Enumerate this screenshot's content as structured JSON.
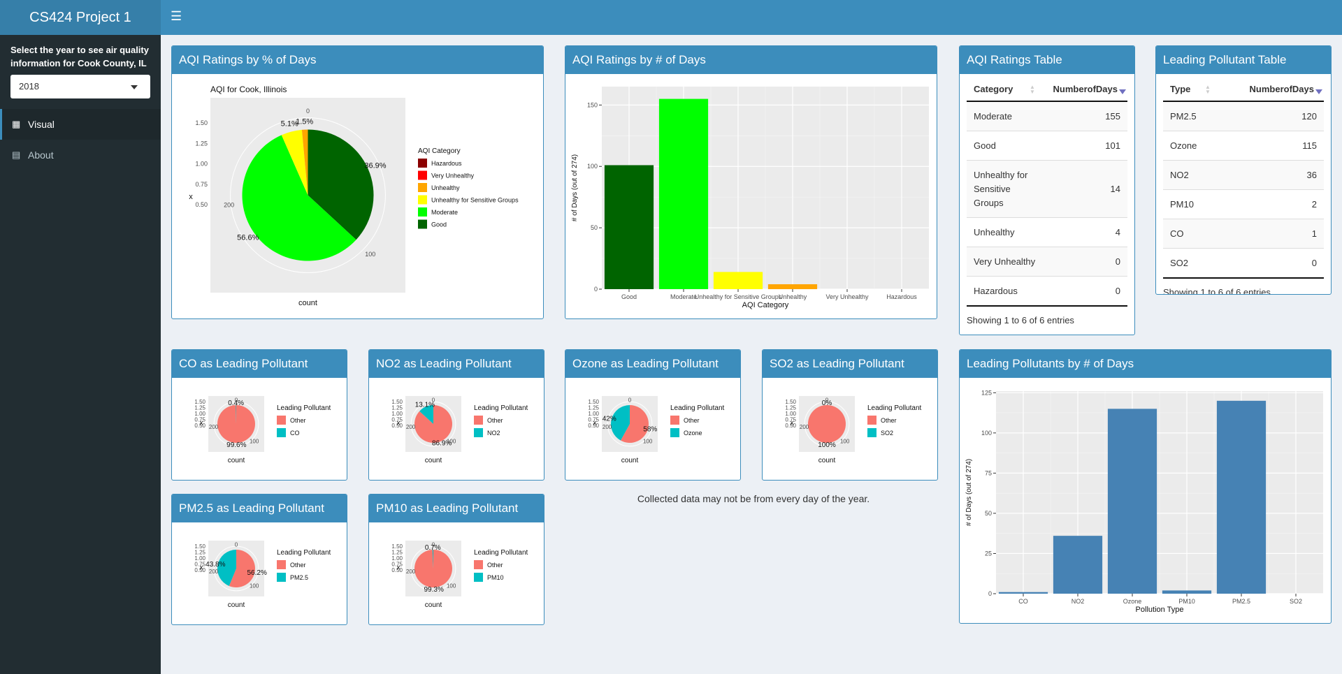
{
  "app": {
    "title": "CS424 Project 1"
  },
  "sidebar": {
    "prompt": "Select the year to see air quality information for Cook County, IL",
    "year_select": {
      "value": "2018"
    },
    "items": [
      {
        "label": "Visual",
        "icon": "grid-icon"
      },
      {
        "label": "About",
        "icon": "clipboard-icon"
      }
    ]
  },
  "boxes": {
    "aqi_pct": "AQI Ratings by % of Days",
    "aqi_days": "AQI Ratings by # of Days",
    "aqi_table": "AQI Ratings Table",
    "pollutant_table": "Leading Pollutant Table",
    "co": "CO as Leading Pollutant",
    "no2": "NO2 as Leading Pollutant",
    "ozone": "Ozone as Leading Pollutant",
    "so2": "SO2 as Leading Pollutant",
    "pm25": "PM2.5 as Leading Pollutant",
    "pm10": "PM10 as Leading Pollutant",
    "pollutants_days": "Leading Pollutants by # of Days"
  },
  "aqi_table": {
    "headers": [
      "Category",
      "NumberofDays"
    ],
    "rows": [
      {
        "category": "Moderate",
        "days": "155"
      },
      {
        "category": "Good",
        "days": "101"
      },
      {
        "category": "Unhealthy for Sensitive Groups",
        "days": "14"
      },
      {
        "category": "Unhealthy",
        "days": "4"
      },
      {
        "category": "Very Unhealthy",
        "days": "0"
      },
      {
        "category": "Hazardous",
        "days": "0"
      }
    ],
    "info": "Showing 1 to 6 of 6 entries"
  },
  "pollutant_table": {
    "headers": [
      "Type",
      "NumberofDays"
    ],
    "rows": [
      {
        "type": "PM2.5",
        "days": "120"
      },
      {
        "type": "Ozone",
        "days": "115"
      },
      {
        "type": "NO2",
        "days": "36"
      },
      {
        "type": "PM10",
        "days": "2"
      },
      {
        "type": "CO",
        "days": "1"
      },
      {
        "type": "SO2",
        "days": "0"
      }
    ],
    "info": "Showing 1 to 6 of 6 entries"
  },
  "note": "Collected data may not be  from every day of the year.",
  "chart_data": [
    {
      "id": "aqi_pct",
      "type": "pie",
      "title": "AQI for Cook, Illinois",
      "xlabel": "count",
      "ylabel": "x",
      "legend_title": "AQI Category",
      "legend_position": "right",
      "legend": [
        "Hazardous",
        "Very Unhealthy",
        "Unhealthy",
        "Unhealthy for Sensitive Groups",
        "Moderate",
        "Good"
      ],
      "legend_colors": [
        "#8b0000",
        "#ff0000",
        "#ffa500",
        "#ffff00",
        "#00ff00",
        "#006400"
      ],
      "slices": [
        {
          "label": "Good",
          "value": 101,
          "color": "#006400",
          "pct_label": "36.9%"
        },
        {
          "label": "Moderate",
          "value": 155,
          "color": "#00ff00",
          "pct_label": "56.6%"
        },
        {
          "label": "Unhealthy for Sensitive Groups",
          "value": 14,
          "color": "#ffff00",
          "pct_label": "5.1%"
        },
        {
          "label": "Unhealthy",
          "value": 4,
          "color": "#ffa500",
          "pct_label": "1.5%"
        }
      ],
      "radial_ticks": [
        "0",
        "100",
        "200"
      ],
      "y_ticks": [
        "0.50",
        "0.75",
        "1.00",
        "1.25",
        "1.50"
      ]
    },
    {
      "id": "aqi_days",
      "type": "bar",
      "xlabel": "AQI Category",
      "ylabel": "# of Days (out of 274)",
      "categories": [
        "Good",
        "Moderate",
        "Unhealthy for Sensitive Groups",
        "Unhealthy",
        "Very Unhealthy",
        "Hazardous"
      ],
      "values": [
        101,
        155,
        14,
        4,
        0,
        0
      ],
      "colors": [
        "#006400",
        "#00ff00",
        "#ffff00",
        "#ffa500",
        "#ff0000",
        "#8b0000"
      ],
      "ylim": [
        0,
        165
      ],
      "yticks": [
        0,
        50,
        100,
        150
      ],
      "grid": true
    },
    {
      "id": "pollutants_days",
      "type": "bar",
      "xlabel": "Pollution Type",
      "ylabel": "# of Days (out of 274)",
      "categories": [
        "CO",
        "NO2",
        "Ozone",
        "PM10",
        "PM2.5",
        "SO2"
      ],
      "values": [
        1,
        36,
        115,
        2,
        120,
        0
      ],
      "color": "#4682b4",
      "ylim": [
        0,
        126
      ],
      "yticks": [
        0,
        25,
        50,
        75,
        100,
        125
      ],
      "grid": true
    },
    {
      "id": "co",
      "type": "pie",
      "xlabel": "count",
      "ylabel": "x",
      "legend_title": "Leading Pollutant",
      "legend": [
        "Other",
        "CO"
      ],
      "slices": [
        {
          "label": "Other",
          "value": 273,
          "color": "#f8766d",
          "pct_label": "99.6%"
        },
        {
          "label": "CO",
          "value": 1,
          "color": "#00bfc4",
          "pct_label": "0.4%"
        }
      ],
      "radial_ticks": [
        "0",
        "100",
        "200"
      ],
      "y_ticks": [
        "0.50",
        "0.75",
        "1.00",
        "1.25",
        "1.50"
      ]
    },
    {
      "id": "no2",
      "type": "pie",
      "xlabel": "count",
      "ylabel": "x",
      "legend_title": "Leading Pollutant",
      "legend": [
        "Other",
        "NO2"
      ],
      "slices": [
        {
          "label": "Other",
          "value": 238,
          "color": "#f8766d",
          "pct_label": "86.9%"
        },
        {
          "label": "NO2",
          "value": 36,
          "color": "#00bfc4",
          "pct_label": "13.1%"
        }
      ],
      "radial_ticks": [
        "0",
        "100",
        "200"
      ],
      "y_ticks": [
        "0.50",
        "0.75",
        "1.00",
        "1.25",
        "1.50"
      ]
    },
    {
      "id": "ozone",
      "type": "pie",
      "xlabel": "count",
      "ylabel": "x",
      "legend_title": "Leading Pollutant",
      "legend": [
        "Other",
        "Ozone"
      ],
      "slices": [
        {
          "label": "Other",
          "value": 159,
          "color": "#f8766d",
          "pct_label": "58%"
        },
        {
          "label": "Ozone",
          "value": 115,
          "color": "#00bfc4",
          "pct_label": "42%"
        }
      ],
      "radial_ticks": [
        "0",
        "100",
        "200"
      ],
      "y_ticks": [
        "0.50",
        "0.75",
        "1.00",
        "1.25",
        "1.50"
      ]
    },
    {
      "id": "so2",
      "type": "pie",
      "xlabel": "count",
      "ylabel": "x",
      "legend_title": "Leading Pollutant",
      "legend": [
        "Other",
        "SO2"
      ],
      "slices": [
        {
          "label": "Other",
          "value": 274,
          "color": "#f8766d",
          "pct_label": "100%"
        },
        {
          "label": "SO2",
          "value": 0,
          "color": "#00bfc4",
          "pct_label": "0%"
        }
      ],
      "radial_ticks": [
        "0",
        "100",
        "200"
      ],
      "y_ticks": [
        "0.50",
        "0.75",
        "1.00",
        "1.25",
        "1.50"
      ]
    },
    {
      "id": "pm25",
      "type": "pie",
      "xlabel": "count",
      "ylabel": "x",
      "legend_title": "Leading Pollutant",
      "legend": [
        "Other",
        "PM2.5"
      ],
      "slices": [
        {
          "label": "Other",
          "value": 154,
          "color": "#f8766d",
          "pct_label": "56.2%"
        },
        {
          "label": "PM2.5",
          "value": 120,
          "color": "#00bfc4",
          "pct_label": "43.8%"
        }
      ],
      "radial_ticks": [
        "0",
        "100",
        "200"
      ],
      "y_ticks": [
        "0.50",
        "0.75",
        "1.00",
        "1.25",
        "1.50"
      ]
    },
    {
      "id": "pm10",
      "type": "pie",
      "xlabel": "count",
      "ylabel": "x",
      "legend_title": "Leading Pollutant",
      "legend": [
        "Other",
        "PM10"
      ],
      "slices": [
        {
          "label": "Other",
          "value": 272,
          "color": "#f8766d",
          "pct_label": "99.3%"
        },
        {
          "label": "PM10",
          "value": 2,
          "color": "#00bfc4",
          "pct_label": "0.7%"
        }
      ],
      "radial_ticks": [
        "0",
        "100",
        "200"
      ],
      "y_ticks": [
        "0.50",
        "0.75",
        "1.00",
        "1.25",
        "1.50"
      ]
    }
  ]
}
